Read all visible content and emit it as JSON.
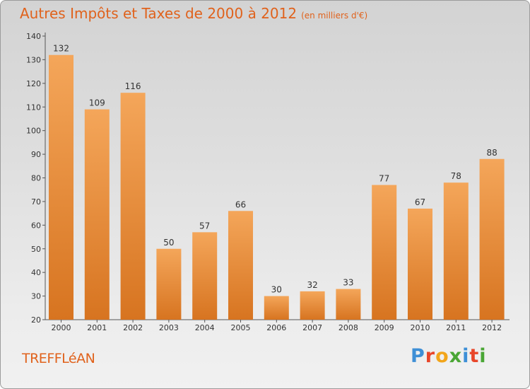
{
  "header": {
    "title": "Autres Impôts et Taxes de 2000 à 2012",
    "unit": "(en milliers d'€)"
  },
  "commune": "TREFFLéAN",
  "logo": {
    "text": "Proxiti",
    "letters": [
      {
        "ch": "P",
        "color": "#3e8fd6"
      },
      {
        "ch": "r",
        "color": "#e8462a"
      },
      {
        "ch": "o",
        "color": "#f2a51a"
      },
      {
        "ch": "x",
        "color": "#4aa635"
      },
      {
        "ch": "i",
        "color": "#3e8fd6"
      },
      {
        "ch": "t",
        "color": "#e8462a"
      },
      {
        "ch": "i",
        "color": "#4aa635"
      }
    ]
  },
  "colors": {
    "accent": "#e0621c",
    "bar_top": "#f4a65a",
    "bar_bottom": "#d77420"
  },
  "chart_data": {
    "type": "bar",
    "categories": [
      "2000",
      "2001",
      "2002",
      "2003",
      "2004",
      "2005",
      "2006",
      "2007",
      "2008",
      "2009",
      "2010",
      "2011",
      "2012"
    ],
    "values": [
      132,
      109,
      116,
      50,
      57,
      66,
      30,
      32,
      33,
      77,
      67,
      78,
      88
    ],
    "title": "Autres Impôts et Taxes de 2000 à 2012",
    "ylim": [
      20,
      140
    ],
    "yticks": [
      20,
      30,
      40,
      50,
      60,
      70,
      80,
      90,
      100,
      110,
      120,
      130,
      140
    ],
    "grid": false,
    "data_labels": true
  }
}
